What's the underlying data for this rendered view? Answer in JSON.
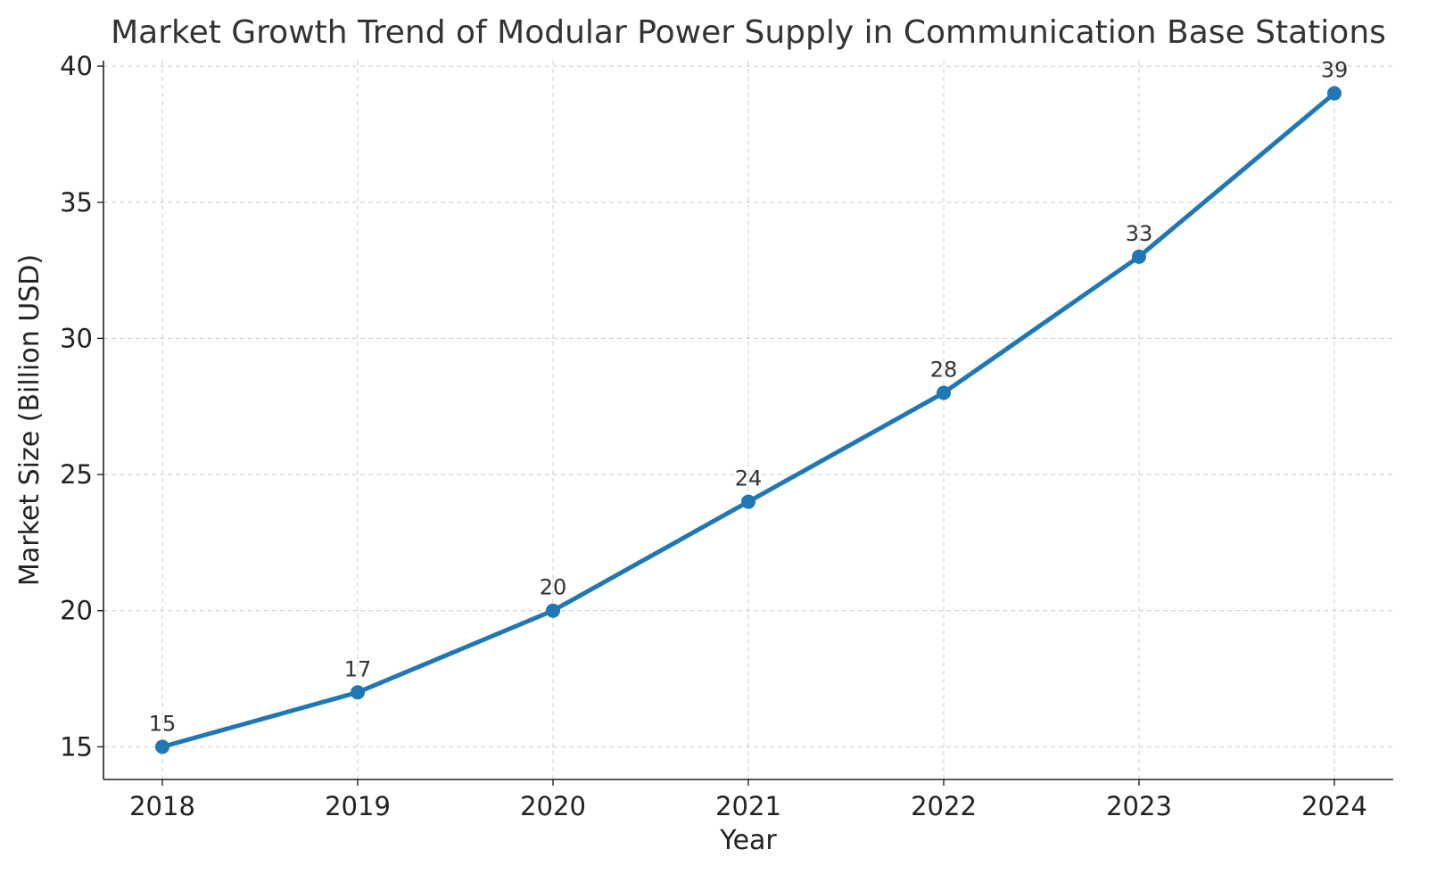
{
  "chart_data": {
    "type": "line",
    "title": "Market Growth Trend of Modular Power Supply in Communication Base Stations",
    "xlabel": "Year",
    "ylabel": "Market Size (Billion USD)",
    "categories": [
      "2018",
      "2019",
      "2020",
      "2021",
      "2022",
      "2023",
      "2024"
    ],
    "series": [
      {
        "values": [
          15,
          17,
          20,
          24,
          28,
          33,
          39
        ],
        "color": "#1f77b4"
      }
    ],
    "data_labels": [
      "15",
      "17",
      "20",
      "24",
      "28",
      "33",
      "39"
    ],
    "yticks": [
      15,
      20,
      25,
      30,
      35,
      40
    ],
    "ytick_labels": [
      "15",
      "20",
      "25",
      "30",
      "35",
      "40"
    ],
    "ylim": [
      13.8,
      40.2
    ],
    "grid": true,
    "grid_style": "dashed",
    "legend": "none",
    "marker": "circle"
  }
}
